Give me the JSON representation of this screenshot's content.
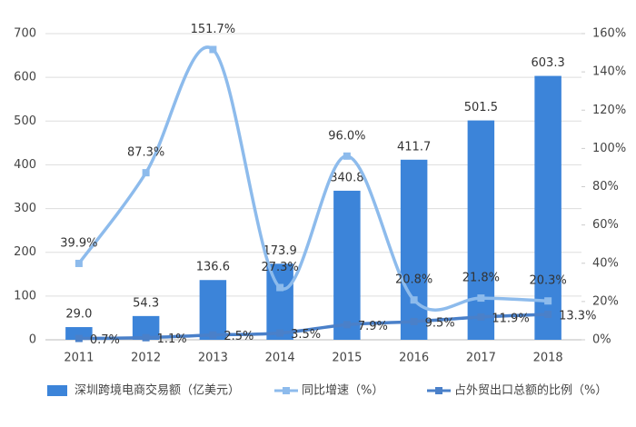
{
  "chart_data": {
    "type": "bar-line",
    "categories": [
      "2011",
      "2012",
      "2013",
      "2014",
      "2015",
      "2016",
      "2017",
      "2018"
    ],
    "series": [
      {
        "name": "深圳跨境电商交易额（亿美元）",
        "type": "bar",
        "color": "#3c84d9",
        "values": [
          29.0,
          54.3,
          136.6,
          173.9,
          340.8,
          411.7,
          501.5,
          603.3
        ],
        "value_labels": [
          "29.0",
          "54.3",
          "136.6",
          "173.9",
          "340.8",
          "411.7",
          "501.5",
          "603.3"
        ]
      },
      {
        "name": "同比增速（%）",
        "type": "line",
        "axis": "y2",
        "color": "#8dbbec",
        "smooth": true,
        "values": [
          39.9,
          87.3,
          151.7,
          27.3,
          96.0,
          20.8,
          21.8,
          20.3
        ],
        "value_labels": [
          "39.9%",
          "87.3%",
          "151.7%",
          "27.3%",
          "96.0%",
          "20.8%",
          "21.8%",
          "20.3%"
        ]
      },
      {
        "name": "占外贸出口总额的比例（%）",
        "type": "line",
        "axis": "y2",
        "color": "#4a80c9",
        "smooth": true,
        "values": [
          0.7,
          1.1,
          2.5,
          3.5,
          7.9,
          9.5,
          11.9,
          13.3
        ],
        "value_labels": [
          "0.7%",
          "1.1%",
          "2.5%",
          "3.5%",
          "7.9%",
          "9.5%",
          "11.9%",
          "13.3%"
        ]
      }
    ],
    "ylim": [
      0,
      700
    ],
    "yticks": [
      0,
      100,
      200,
      300,
      400,
      500,
      600,
      700
    ],
    "y2lim": [
      0,
      160
    ],
    "y2ticks": [
      {
        "value": 0,
        "label": "0%"
      },
      {
        "value": 20,
        "label": "20%"
      },
      {
        "value": 40,
        "label": "40%"
      },
      {
        "value": 60,
        "label": "60%"
      },
      {
        "value": 80,
        "label": "80%"
      },
      {
        "value": 100,
        "label": "100%"
      },
      {
        "value": 120,
        "label": "120%"
      },
      {
        "value": 140,
        "label": "140%"
      },
      {
        "value": 160,
        "label": "160%"
      }
    ],
    "grid": true,
    "legend": "bottom"
  }
}
